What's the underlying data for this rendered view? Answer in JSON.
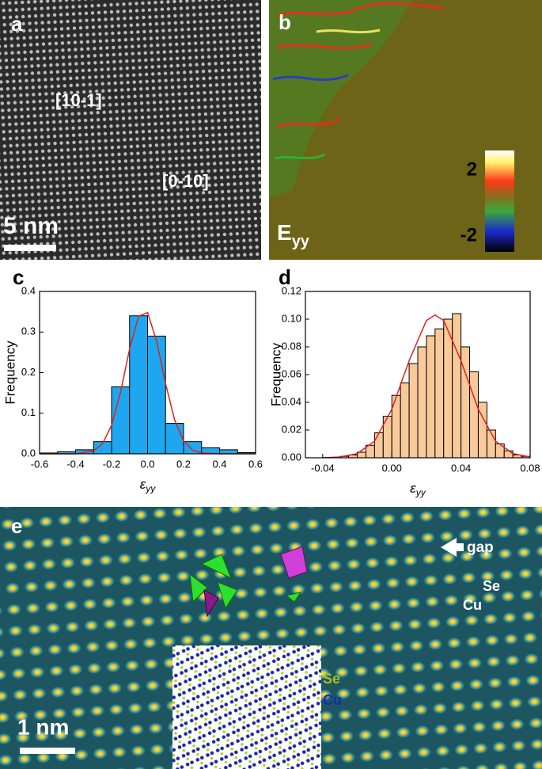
{
  "panels": {
    "a": {
      "label": "a",
      "annotations": [
        "[10-1]",
        "[0-10]"
      ],
      "scale_bar": "5 nm"
    },
    "b": {
      "label": "b",
      "map_label": "E",
      "map_label_sub": "yy",
      "colorbar_ticks": [
        2,
        -2
      ]
    },
    "e": {
      "label": "e",
      "annotations": {
        "gap": "gap",
        "se": "Se",
        "cu": "Cu"
      },
      "inset_legend": [
        "Se",
        "Cu"
      ],
      "scale_bar": "1 nm"
    }
  },
  "chart_data": [
    {
      "type": "histogram",
      "panel_label": "c",
      "y_label": "Frequency",
      "x_label": "ε",
      "x_label_sub": "yy",
      "color": "#1ea7f0",
      "bins": [
        -0.6,
        -0.5,
        -0.4,
        -0.3,
        -0.2,
        -0.1,
        0,
        0.1,
        0.2,
        0.3,
        0.4,
        0.5,
        0.6
      ],
      "values": [
        0.002,
        0.005,
        0.01,
        0.03,
        0.165,
        0.34,
        0.29,
        0.075,
        0.03,
        0.015,
        0.01,
        0.003
      ],
      "fit": {
        "color": "#e02020",
        "x": [
          -0.6,
          -0.4,
          -0.3,
          -0.25,
          -0.2,
          -0.15,
          -0.1,
          -0.05,
          0,
          0.05,
          0.1,
          0.15,
          0.2,
          0.25,
          0.3,
          0.4,
          0.6
        ],
        "values": [
          0,
          0,
          0.007,
          0.025,
          0.07,
          0.152,
          0.258,
          0.339,
          0.348,
          0.278,
          0.173,
          0.084,
          0.032,
          0.009,
          0.002,
          0,
          0
        ]
      },
      "xlim": [
        -0.6,
        0.6
      ],
      "xticks": [
        -0.6,
        -0.4,
        -0.2,
        {
          "value": 0,
          "label": "0.0"
        },
        0.2,
        0.4,
        0.6
      ],
      "ylim": [
        0,
        0.4
      ],
      "yticks": [
        {
          "value": 0,
          "label": "0.0"
        },
        0.1,
        0.2,
        0.3,
        0.4
      ]
    },
    {
      "type": "histogram",
      "panel_label": "d",
      "y_label": "Frequency",
      "x_label": "ε",
      "x_label_sub": "yy",
      "color": "#f9c99a",
      "bins": [
        -0.04,
        -0.035,
        -0.03,
        -0.025,
        -0.02,
        -0.015,
        -0.01,
        -0.005,
        0,
        0.005,
        0.01,
        0.015,
        0.02,
        0.025,
        0.03,
        0.035,
        0.04,
        0.045,
        0.05,
        0.055,
        0.06,
        0.065,
        0.07,
        0.075,
        0.08
      ],
      "values": [
        0,
        0,
        0.001,
        0.002,
        0.004,
        0.009,
        0.018,
        0.03,
        0.045,
        0.054,
        0.068,
        0.08,
        0.088,
        0.093,
        0.1,
        0.104,
        0.08,
        0.062,
        0.04,
        0.02,
        0.01,
        0.005,
        0.002,
        0.001
      ],
      "fit": {
        "color": "#e02020",
        "x": [
          -0.04,
          -0.03,
          -0.02,
          -0.01,
          0,
          0.01,
          0.02,
          0.025,
          0.03,
          0.04,
          0.05,
          0.06,
          0.07,
          0.08
        ],
        "values": [
          0,
          0.0006,
          0.003,
          0.012,
          0.035,
          0.07,
          0.099,
          0.103,
          0.099,
          0.07,
          0.035,
          0.012,
          0.003,
          0.0006
        ]
      },
      "xlim": [
        -0.05,
        0.08
      ],
      "xticks": [
        -0.04,
        {
          "value": 0,
          "label": "0.00"
        },
        0.04,
        0.08
      ],
      "ylim": [
        0,
        0.12
      ],
      "yticks": [
        {
          "value": 0,
          "label": "0.00"
        },
        0.02,
        0.04,
        0.06,
        0.08,
        {
          "value": 0.1,
          "label": "0.10"
        },
        0.12
      ]
    }
  ]
}
